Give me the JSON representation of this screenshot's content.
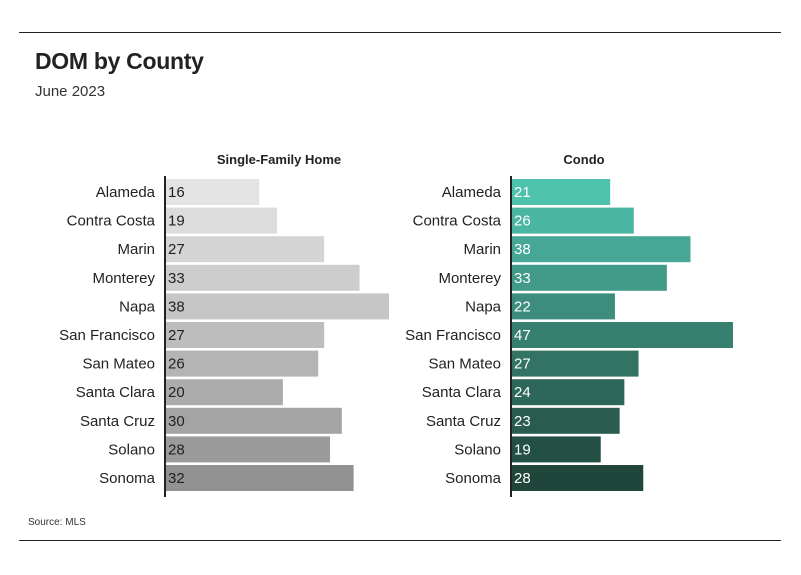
{
  "title": "DOM by County",
  "subtitle": "June 2023",
  "source": "Source: MLS",
  "chart_data": [
    {
      "type": "bar",
      "orientation": "horizontal",
      "title": "Single-Family Home",
      "categories": [
        "Alameda",
        "Contra Costa",
        "Marin",
        "Monterey",
        "Napa",
        "San Francisco",
        "San Mateo",
        "Santa Clara",
        "Santa Cruz",
        "Solano",
        "Sonoma"
      ],
      "values": [
        16,
        19,
        27,
        33,
        38,
        27,
        26,
        20,
        30,
        28,
        32
      ],
      "xlim": [
        0,
        38
      ],
      "grid": false,
      "colors": [
        "#e3e3e3",
        "#dcdcdc",
        "#d4d4d4",
        "#cdcdcd",
        "#c6c6c6",
        "#bdbdbd",
        "#b4b4b4",
        "#acacac",
        "#a4a4a4",
        "#9b9b9b",
        "#929292"
      ],
      "label_color": "#222222"
    },
    {
      "type": "bar",
      "orientation": "horizontal",
      "title": "Condo",
      "categories": [
        "Alameda",
        "Contra Costa",
        "Marin",
        "Monterey",
        "Napa",
        "San Francisco",
        "San Mateo",
        "Santa Clara",
        "Santa Cruz",
        "Solano",
        "Sonoma"
      ],
      "values": [
        21,
        26,
        38,
        33,
        22,
        47,
        27,
        24,
        23,
        19,
        28
      ],
      "xlim": [
        0,
        47
      ],
      "grid": false,
      "colors": [
        "#4fc2ab",
        "#4ab5a0",
        "#46a894",
        "#419b88",
        "#3c8d7d",
        "#37806f",
        "#327364",
        "#2d6759",
        "#295b4f",
        "#244f45",
        "#20463c"
      ],
      "label_color": "#ffffff"
    }
  ]
}
